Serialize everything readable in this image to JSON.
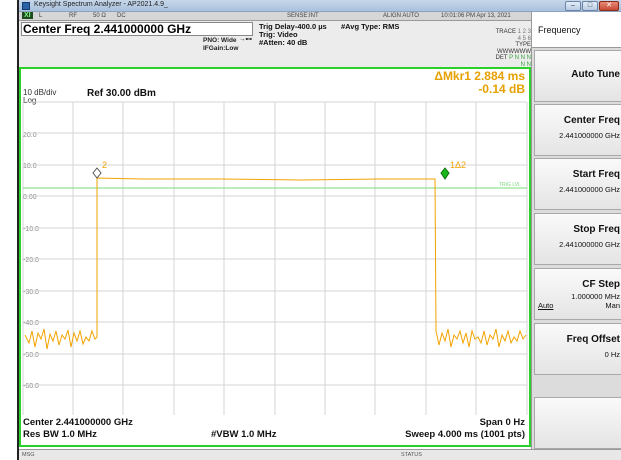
{
  "window": {
    "title": "Keysight Spectrum Analyzer - AP2021.4.9_"
  },
  "status_row": {
    "logo": "XI",
    "items": [
      "L",
      "RF",
      "50 Ω",
      "DC",
      "SENSE:INT",
      "ALIGN AUTO",
      "10:01:06 PM Apr 13, 2021"
    ]
  },
  "info": {
    "center_title": "Center Freq 2.441000000 GHz",
    "pno": "PNO: Wide",
    "ifgain": "IFGain:Low",
    "trig_delay": "Trig Delay-400.0 µs",
    "trig": "Trig: Video",
    "atten": "#Atten: 40 dB",
    "avg_type": "#Avg Type: RMS",
    "trace_label": "TRACE",
    "trace_nums": "1 2 3 4 5 6",
    "type_label": "TYPE",
    "type_val": "WWWWWW",
    "det_label": "DET",
    "det_val": "P N N N N N"
  },
  "graticule": {
    "marker_line1": "ΔMkr1 2.884 ms",
    "marker_line2": "-0.14 dB",
    "scale": "10 dB/div",
    "scale_type": "Log",
    "ref_level": "Ref 30.00 dBm",
    "y_labels": [
      "20.0",
      "10.0",
      "0.00",
      "-10.0",
      "-20.0",
      "-30.0",
      "-40.0",
      "-50.0",
      "-60.0"
    ],
    "trig_lvl": "TRIG LVL",
    "marker_ref_label": "2",
    "marker_delta_label": "1Δ2"
  },
  "bottom": {
    "center": "Center 2.441000000 GHz",
    "span": "Span 0 Hz",
    "res_bw": "Res BW 1.0 MHz",
    "vbw": "#VBW 1.0 MHz",
    "sweep": "Sweep  4.000 ms (1001 pts)"
  },
  "msgbar": {
    "msg": "MSG",
    "status": "STATUS"
  },
  "softkeys": {
    "header": "Frequency",
    "auto_tune": "Auto Tune",
    "center_freq_label": "Center Freq",
    "center_freq_val": "2.441000000 GHz",
    "start_freq_label": "Start Freq",
    "start_freq_val": "2.441000000 GHz",
    "stop_freq_label": "Stop Freq",
    "stop_freq_val": "2.441000000 GHz",
    "cf_step_label": "CF Step",
    "cf_step_val": "1.000000 MHz",
    "cf_step_auto": "Auto",
    "cf_step_man": "Man",
    "freq_offset_label": "Freq Offset",
    "freq_offset_val": "0 Hz"
  },
  "colors": {
    "trace": "#f2a300",
    "graticule_border": "#2bd02b",
    "trig_line": "#7bd97b",
    "marker_delta": "#1bb81b"
  }
}
